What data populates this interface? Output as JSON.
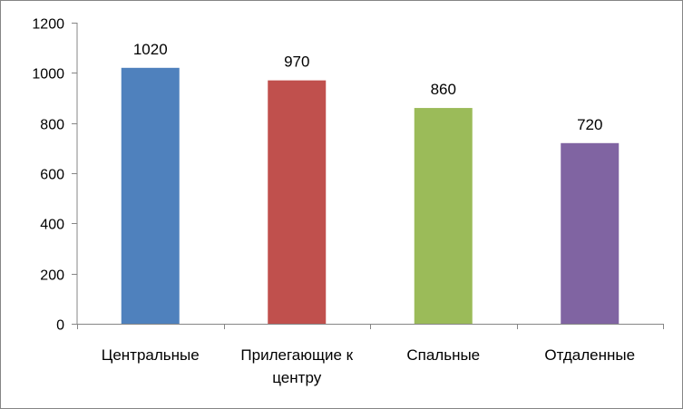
{
  "chart_data": {
    "type": "bar",
    "categories": [
      "Центральные",
      "Прилегающие к центру",
      "Спальные",
      "Отдаленные"
    ],
    "category_lines": [
      [
        "Центральные"
      ],
      [
        "Прилегающие к",
        "центру"
      ],
      [
        "Спальные"
      ],
      [
        "Отдаленные"
      ]
    ],
    "values": [
      1020,
      970,
      860,
      720
    ],
    "value_labels": [
      "1020",
      "970",
      "860",
      "720"
    ],
    "colors": [
      "#4f81bd",
      "#c0504d",
      "#9bbb59",
      "#8064a2"
    ],
    "ylim": [
      0,
      1200
    ],
    "yticks": [
      0,
      200,
      400,
      600,
      800,
      1000,
      1200
    ],
    "grid": false,
    "legend": "none"
  }
}
